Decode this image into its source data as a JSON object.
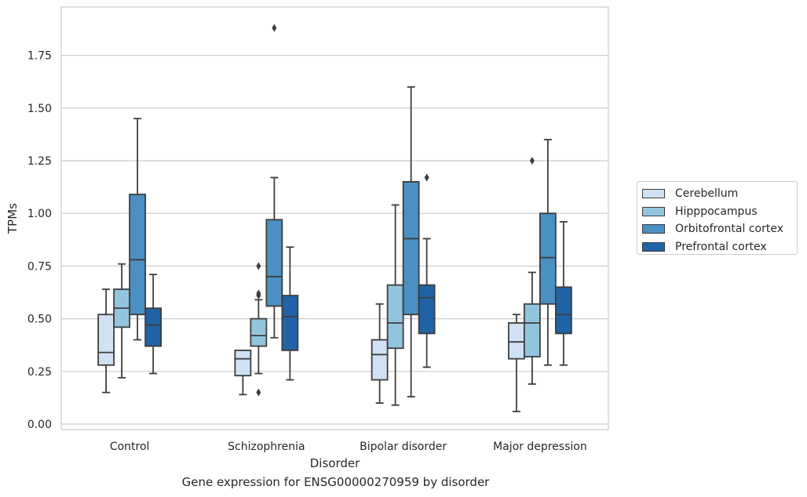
{
  "chart_data": {
    "type": "box",
    "xlabel": "Disorder",
    "ylabel": "TPMs",
    "ylim": [
      -0.02,
      1.98
    ],
    "yticks": [
      0.0,
      0.25,
      0.5,
      0.75,
      1.0,
      1.25,
      1.5,
      1.75
    ],
    "ytick_labels": [
      "0.00",
      "0.25",
      "0.50",
      "0.75",
      "1.00",
      "1.25",
      "1.50",
      "1.75"
    ],
    "grid": true,
    "legend_position": "outside-right",
    "categories": [
      "Control",
      "Schizophrenia",
      "Bipolar disorder",
      "Major depression"
    ],
    "series": [
      {
        "name": "Cerebellum",
        "color": "#cfe1f2",
        "boxes": [
          {
            "whislo": 0.15,
            "q1": 0.28,
            "med": 0.34,
            "q3": 0.52,
            "whishi": 0.64,
            "fliers": []
          },
          {
            "whislo": 0.14,
            "q1": 0.23,
            "med": 0.31,
            "q3": 0.35,
            "whishi": 0.35,
            "fliers": []
          },
          {
            "whislo": 0.1,
            "q1": 0.21,
            "med": 0.33,
            "q3": 0.4,
            "whishi": 0.57,
            "fliers": []
          },
          {
            "whislo": 0.06,
            "q1": 0.31,
            "med": 0.39,
            "q3": 0.48,
            "whishi": 0.52,
            "fliers": []
          }
        ]
      },
      {
        "name": "Hipppocampus",
        "color": "#93c4de",
        "boxes": [
          {
            "whislo": 0.22,
            "q1": 0.46,
            "med": 0.55,
            "q3": 0.64,
            "whishi": 0.76,
            "fliers": []
          },
          {
            "whislo": 0.24,
            "q1": 0.37,
            "med": 0.42,
            "q3": 0.5,
            "whishi": 0.59,
            "fliers": [
              0.75,
              0.62,
              0.61,
              0.15
            ]
          },
          {
            "whislo": 0.09,
            "q1": 0.36,
            "med": 0.48,
            "q3": 0.66,
            "whishi": 1.04,
            "fliers": []
          },
          {
            "whislo": 0.19,
            "q1": 0.32,
            "med": 0.48,
            "q3": 0.57,
            "whishi": 0.72,
            "fliers": [
              1.25
            ]
          }
        ]
      },
      {
        "name": "Orbitofrontal cortex",
        "color": "#4a90c2",
        "boxes": [
          {
            "whislo": 0.4,
            "q1": 0.52,
            "med": 0.78,
            "q3": 1.09,
            "whishi": 1.45,
            "fliers": []
          },
          {
            "whislo": 0.41,
            "q1": 0.56,
            "med": 0.7,
            "q3": 0.97,
            "whishi": 1.17,
            "fliers": [
              1.88
            ]
          },
          {
            "whislo": 0.13,
            "q1": 0.52,
            "med": 0.88,
            "q3": 1.15,
            "whishi": 1.6,
            "fliers": []
          },
          {
            "whislo": 0.28,
            "q1": 0.57,
            "med": 0.79,
            "q3": 1.0,
            "whishi": 1.35,
            "fliers": []
          }
        ]
      },
      {
        "name": "Prefrontal cortex",
        "color": "#1f63a6",
        "boxes": [
          {
            "whislo": 0.24,
            "q1": 0.37,
            "med": 0.47,
            "q3": 0.55,
            "whishi": 0.71,
            "fliers": []
          },
          {
            "whislo": 0.21,
            "q1": 0.35,
            "med": 0.51,
            "q3": 0.61,
            "whishi": 0.84,
            "fliers": []
          },
          {
            "whislo": 0.27,
            "q1": 0.43,
            "med": 0.6,
            "q3": 0.66,
            "whishi": 0.88,
            "fliers": [
              1.17
            ]
          },
          {
            "whislo": 0.28,
            "q1": 0.43,
            "med": 0.52,
            "q3": 0.65,
            "whishi": 0.96,
            "fliers": []
          }
        ]
      }
    ],
    "caption": "Gene expression for ENSG00000270959 by disorder"
  }
}
